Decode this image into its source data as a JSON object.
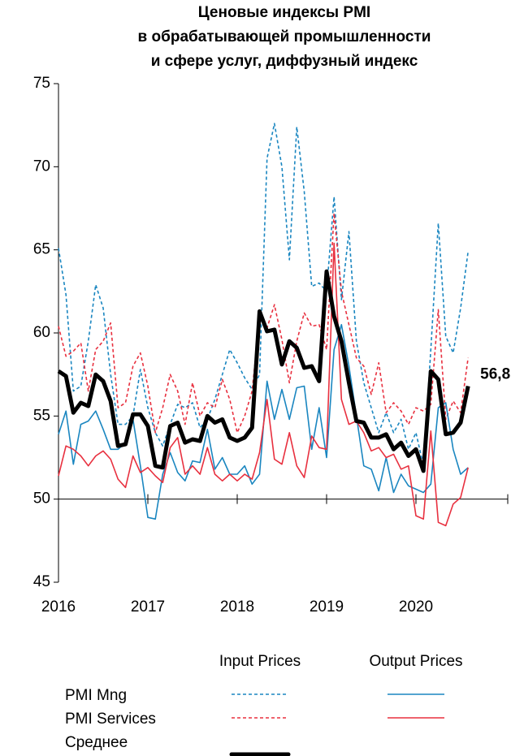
{
  "chart_data": {
    "type": "line",
    "title": [
      "Ценовые индексы PMI",
      "в обрабатывающей промышленности",
      "и сфере услуг, диффузный индекс"
    ],
    "categories": [
      "2016",
      null,
      null,
      null,
      null,
      null,
      null,
      null,
      null,
      null,
      null,
      null,
      "2017",
      null,
      null,
      null,
      null,
      null,
      null,
      null,
      null,
      null,
      null,
      null,
      "2018",
      null,
      null,
      null,
      null,
      null,
      null,
      null,
      null,
      null,
      null,
      null,
      "2019",
      null,
      null,
      null,
      null,
      null,
      null,
      null,
      null,
      null,
      null,
      null,
      "2020",
      null,
      null,
      null,
      null,
      null,
      null,
      null
    ],
    "ylim": [
      45,
      75
    ],
    "yticks": [
      45,
      50,
      55,
      60,
      65,
      70,
      75
    ],
    "x_axis_at": 50,
    "legend_columns": [
      "Input Prices",
      "Output Prices"
    ],
    "series": [
      {
        "name": "PMI Mng",
        "column": 0,
        "color": "#1a86c0",
        "dash": true,
        "width": 1.6,
        "values": [
          65.1,
          62.3,
          56.5,
          56.8,
          59.5,
          62.9,
          61.5,
          57.5,
          54.5,
          54.5,
          55.0,
          57.8,
          55.5,
          54.0,
          53.2,
          54.5,
          55.7,
          55.5,
          55.8,
          54.3,
          54.8,
          56.0,
          57.5,
          59.0,
          58.2,
          57.3,
          56.6,
          57.5,
          70.5,
          72.6,
          70.0,
          64.4,
          72.4,
          68.5,
          62.8,
          63.0,
          62.5,
          68.2,
          62.0,
          66.1,
          59.5,
          57.0,
          55.5,
          54.0,
          55.2,
          54.0,
          54.8,
          53.0,
          54.0,
          52.0,
          59.0,
          66.6,
          59.8,
          58.8,
          61.5,
          64.9
        ]
      },
      {
        "name": "PMI Services",
        "column": 0,
        "color": "#e8303f",
        "dash": true,
        "width": 1.6,
        "values": [
          60.4,
          58.6,
          58.9,
          59.4,
          56.5,
          59.0,
          59.5,
          60.6,
          55.5,
          55.8,
          58.0,
          58.8,
          56.8,
          54.0,
          55.5,
          57.5,
          56.5,
          54.5,
          57.0,
          55.0,
          55.8,
          55.5,
          57.2,
          56.0,
          54.0,
          55.0,
          56.5,
          60.8,
          60.3,
          61.7,
          59.6,
          57.0,
          59.5,
          61.2,
          60.4,
          60.5,
          59.0,
          67.2,
          62.5,
          60.5,
          58.5,
          58.0,
          56.3,
          58.2,
          55.2,
          55.8,
          55.3,
          54.5,
          55.5,
          55.3,
          55.7,
          61.4,
          54.8,
          55.9,
          55.2,
          58.5
        ]
      },
      {
        "name": "PMI Mng",
        "column": 1,
        "color": "#1a86c0",
        "dash": false,
        "width": 1.6,
        "values": [
          53.9,
          55.3,
          52.1,
          54.5,
          54.7,
          55.3,
          54.2,
          53.0,
          53.0,
          53.4,
          54.8,
          52.0,
          48.9,
          48.8,
          51.5,
          52.8,
          51.6,
          51.1,
          52.3,
          52.2,
          54.2,
          51.8,
          52.5,
          51.5,
          51.5,
          52.0,
          50.9,
          51.5,
          57.1,
          54.8,
          56.6,
          54.8,
          56.7,
          56.8,
          53.0,
          55.5,
          52.5,
          59.0,
          60.5,
          58.0,
          55.0,
          52.0,
          51.8,
          50.5,
          52.5,
          50.4,
          51.5,
          50.8,
          50.6,
          50.4,
          50.9,
          55.5,
          55.8,
          53.0,
          51.5,
          51.9
        ]
      },
      {
        "name": "PMI Services",
        "column": 1,
        "color": "#e8303f",
        "dash": false,
        "width": 1.6,
        "values": [
          51.4,
          53.2,
          53.0,
          52.6,
          52.0,
          52.6,
          52.9,
          52.4,
          51.2,
          50.7,
          52.6,
          51.6,
          51.9,
          51.4,
          51.0,
          53.1,
          53.7,
          51.5,
          52.0,
          51.5,
          53.1,
          51.5,
          51.1,
          51.5,
          51.1,
          51.5,
          51.2,
          52.8,
          56.0,
          52.4,
          52.1,
          54.0,
          52.0,
          51.3,
          53.8,
          53.1,
          53.0,
          65.4,
          56.0,
          54.5,
          54.7,
          54.0,
          52.9,
          53.1,
          52.5,
          52.7,
          51.8,
          52.0,
          49.0,
          48.8,
          54.1,
          48.6,
          48.4,
          49.7,
          50.1,
          51.9
        ]
      },
      {
        "name": "Среднее",
        "column": 0,
        "color": "#000000",
        "dash": false,
        "width": 5,
        "values": [
          57.7,
          57.4,
          55.2,
          55.8,
          55.6,
          57.5,
          57.1,
          55.9,
          53.2,
          53.3,
          55.1,
          55.1,
          54.4,
          52.0,
          51.9,
          54.4,
          54.6,
          53.4,
          53.6,
          53.5,
          55.0,
          54.6,
          54.8,
          53.7,
          53.5,
          53.7,
          54.3,
          61.3,
          60.1,
          60.2,
          58.1,
          59.5,
          59.1,
          57.9,
          58.0,
          57.1,
          63.7,
          61.0,
          59.5,
          57.0,
          54.7,
          54.6,
          53.7,
          53.7,
          53.9,
          53.0,
          53.4,
          52.6,
          53.0,
          51.7,
          57.7,
          57.2,
          53.9,
          54.0,
          54.6,
          56.8
        ],
        "value_labels": [
          null,
          null,
          null,
          null,
          null,
          null,
          null,
          null,
          null,
          null,
          null,
          null,
          null,
          null,
          null,
          null,
          null,
          null,
          null,
          null,
          null,
          null,
          null,
          null,
          null,
          null,
          null,
          null,
          null,
          null,
          null,
          null,
          null,
          null,
          null,
          null,
          null,
          null,
          null,
          null,
          null,
          null,
          null,
          null,
          null,
          null,
          null,
          null,
          null,
          null,
          null,
          null,
          null,
          null,
          null,
          "56,8"
        ]
      }
    ]
  }
}
